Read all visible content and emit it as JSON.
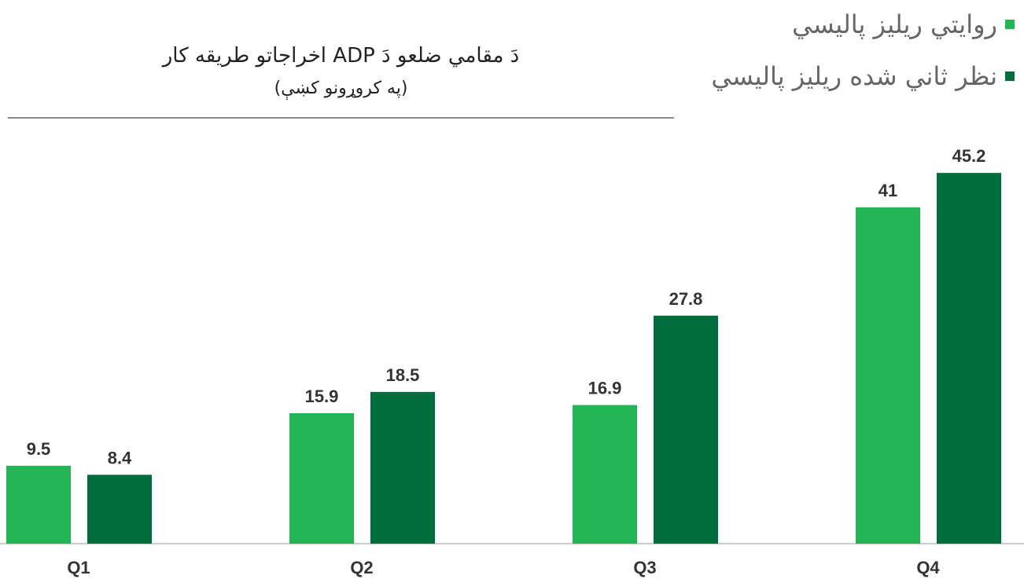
{
  "chart_data": {
    "type": "bar",
    "title": "دَ مقامي ضلعو دَ ADP اخراجاتو طریقه کار",
    "subtitle": "(په کروړونو کښې)",
    "categories": [
      "Q1",
      "Q2",
      "Q3",
      "Q4"
    ],
    "series": [
      {
        "name": "روايتي ریلیز پالیسي",
        "color": "#22b455",
        "values": [
          9.5,
          15.9,
          16.9,
          41
        ]
      },
      {
        "name": "نظر ثاني شده ریلیز پالیسي",
        "color": "#006d3c",
        "values": [
          8.4,
          18.5,
          27.8,
          45.2
        ]
      }
    ],
    "ylim": [
      0,
      50
    ],
    "legend": "top-right"
  }
}
